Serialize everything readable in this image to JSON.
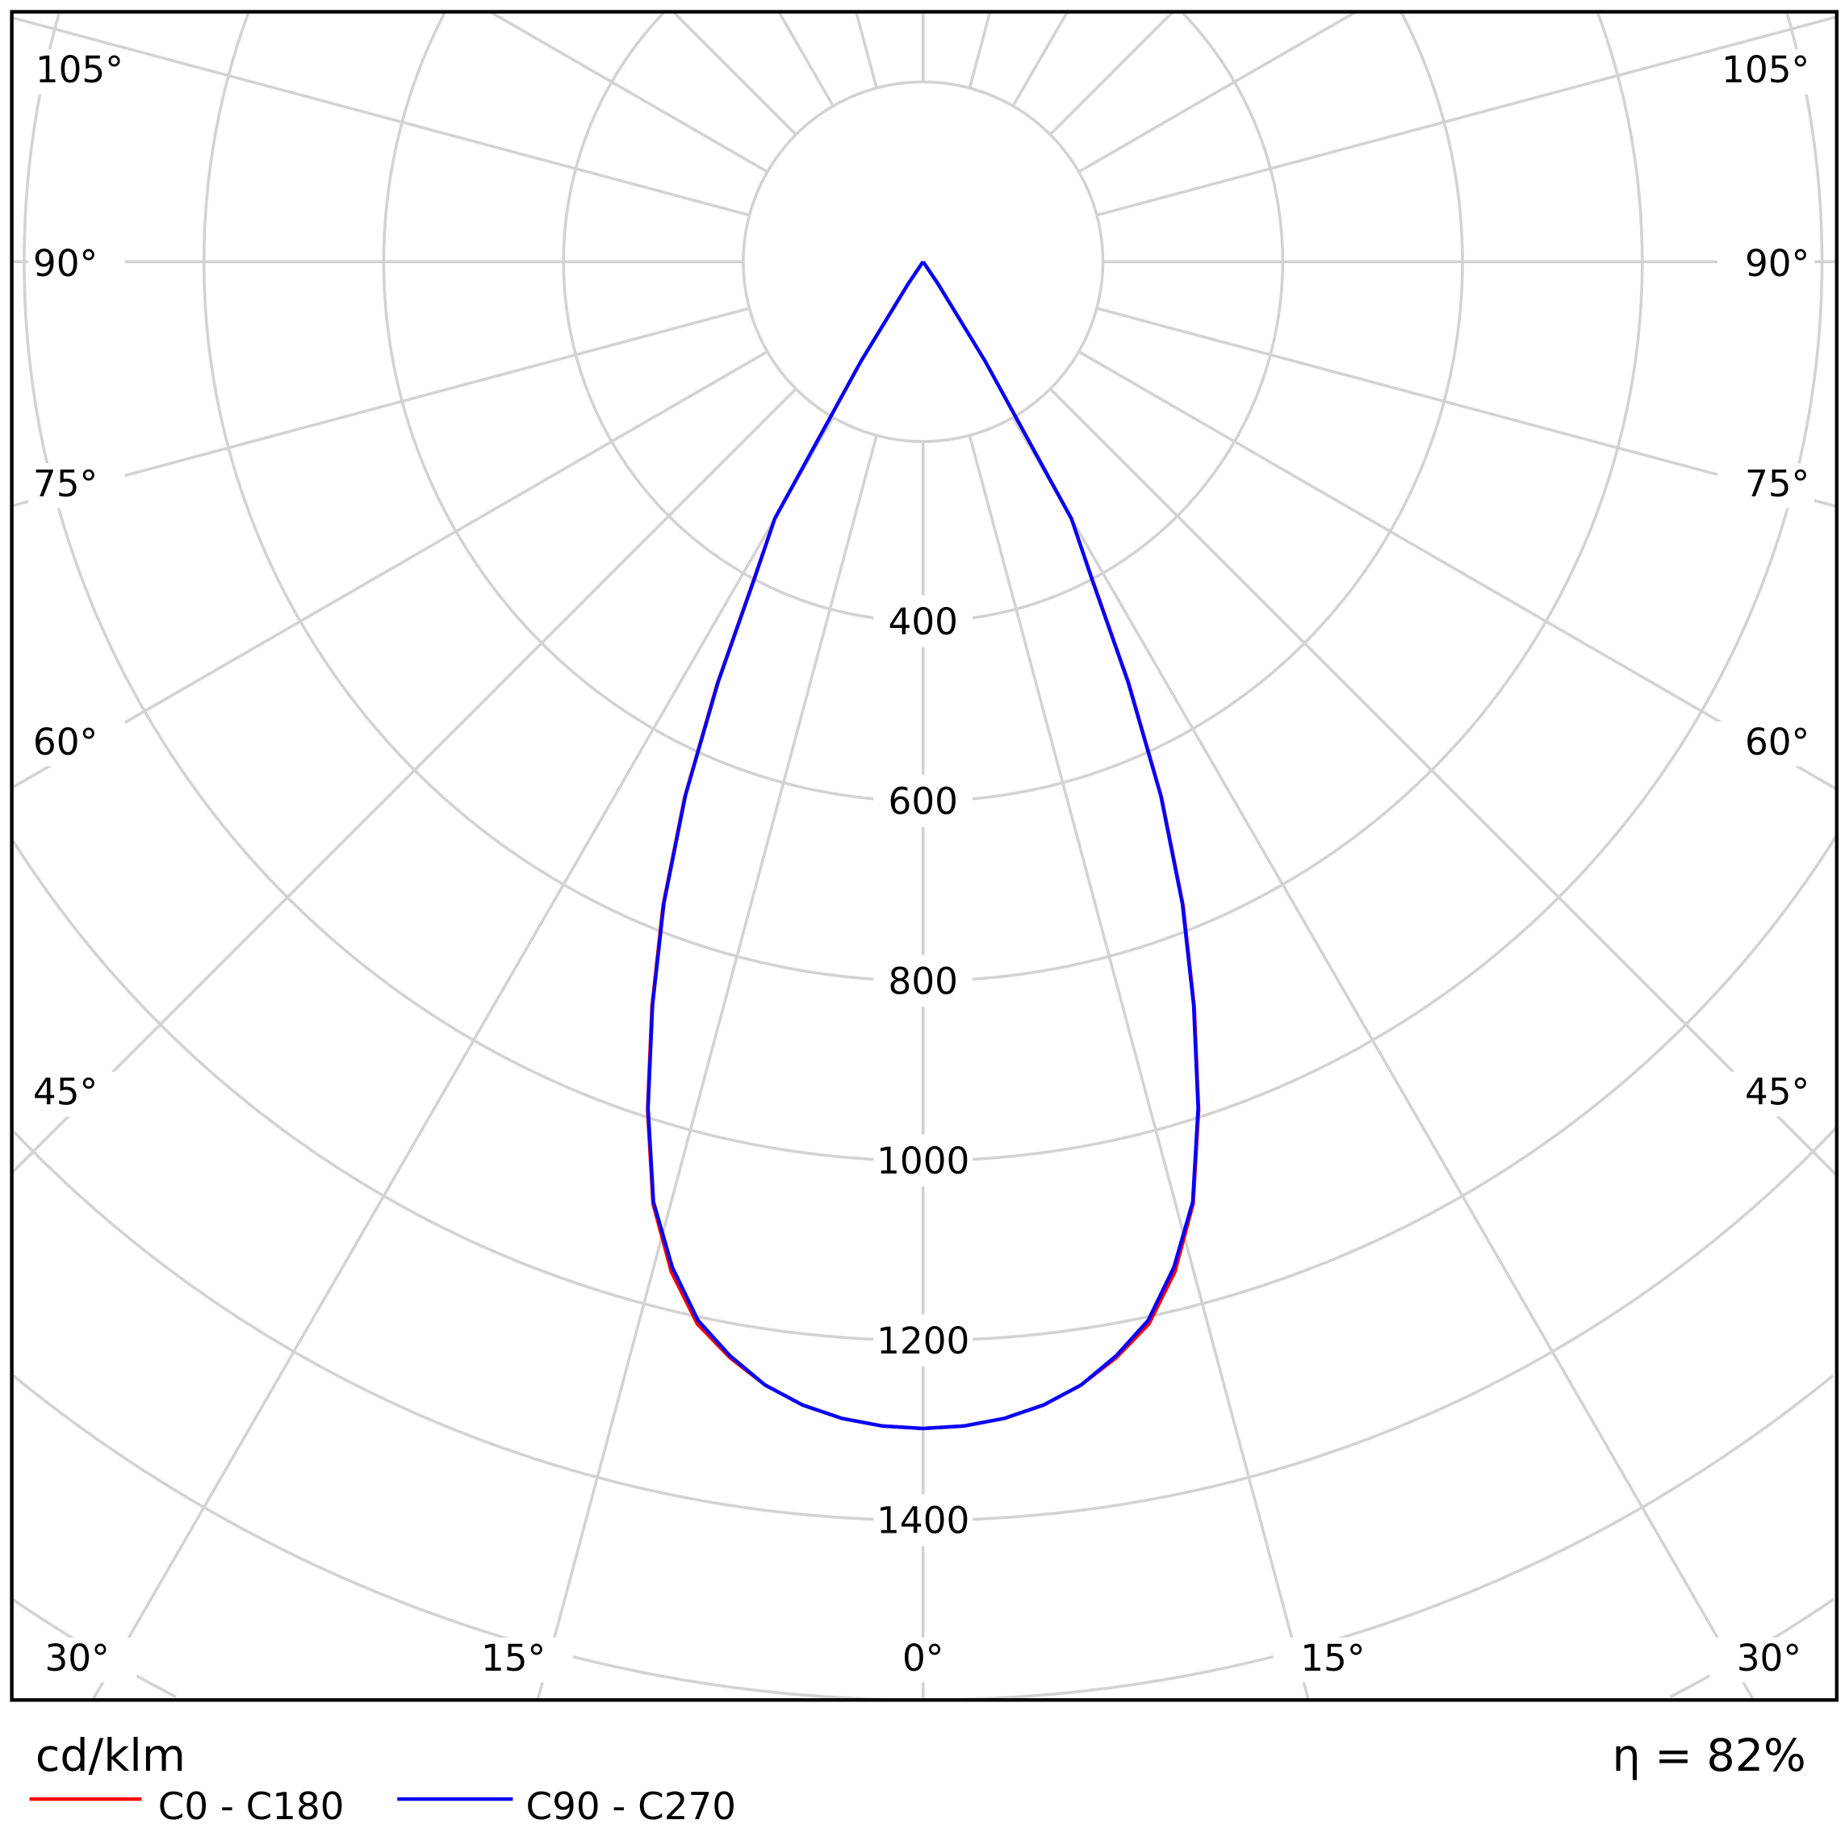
{
  "chart_data": {
    "type": "polar",
    "unit_label": "cd/klm",
    "efficiency_label": "η = 82%",
    "radial_ticks": [
      200,
      400,
      600,
      800,
      1000,
      1200,
      1400,
      1600,
      1800
    ],
    "radial_tick_labels": [
      "400",
      "600",
      "800",
      "1000",
      "1200",
      "1400"
    ],
    "angle_tick_labels": {
      "left": [
        "105°",
        "90°",
        "75°",
        "60°",
        "45°",
        "30°",
        "15°"
      ],
      "center": "0°",
      "right": [
        "15°",
        "30°",
        "45°",
        "60°",
        "75°",
        "90°",
        "105°"
      ]
    },
    "angle_step_deg": 15,
    "grid": true,
    "legend_placement": "bottom-left",
    "angles_deg": [
      0,
      2,
      4,
      6,
      8,
      10,
      12,
      14,
      16,
      18,
      20,
      22,
      24,
      26,
      28,
      30,
      32,
      34,
      36
    ],
    "series": [
      {
        "name": "C0 - C180",
        "color": "#ff0000",
        "values": [
          1298,
          1296,
          1290,
          1279,
          1262,
          1238,
          1208,
          1158,
          1090,
          992,
          882,
          772,
          652,
          522,
          402,
          330,
          130,
          30,
          0
        ]
      },
      {
        "name": "C90 - C270",
        "color": "#0000ff",
        "values": [
          1298,
          1296,
          1290,
          1279,
          1262,
          1236,
          1204,
          1153,
          1088,
          990,
          880,
          770,
          650,
          520,
          400,
          330,
          130,
          30,
          0
        ]
      }
    ]
  }
}
